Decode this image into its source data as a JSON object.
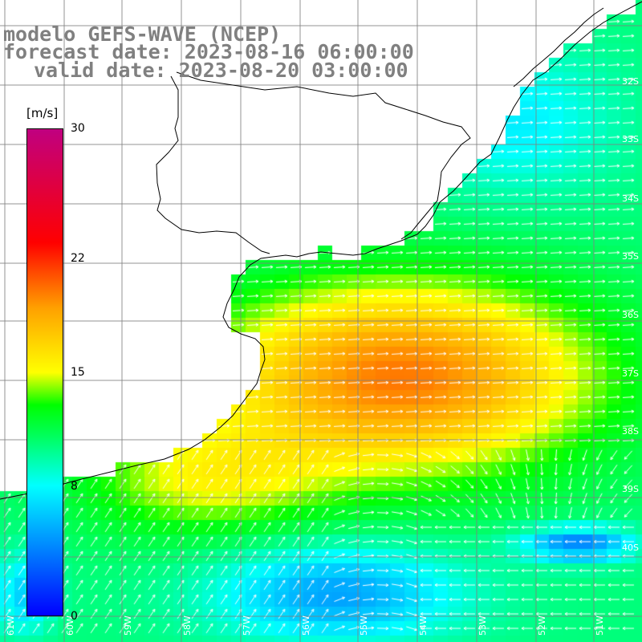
{
  "titles": {
    "line1": "modelo GEFS-WAVE (NCEP)",
    "line2": "forecast date: 2023-08-16 06:00:00",
    "line3": "valid date: 2023-08-20 03:00:00",
    "color": "#808080"
  },
  "colorbar": {
    "unit": "[m/s]",
    "ticks": [
      {
        "value": 30,
        "label": "30"
      },
      {
        "value": 22,
        "label": "22"
      },
      {
        "value": 15,
        "label": "15"
      },
      {
        "value": 8,
        "label": "8"
      },
      {
        "value": 0,
        "label": "0"
      }
    ],
    "min": 0,
    "max": 30,
    "stops": [
      {
        "value": 0,
        "color": "#0000ff"
      },
      {
        "value": 5,
        "color": "#00a0ff"
      },
      {
        "value": 8,
        "color": "#00ffff"
      },
      {
        "value": 11,
        "color": "#00ff60"
      },
      {
        "value": 13,
        "color": "#00ff00"
      },
      {
        "value": 15,
        "color": "#ffff00"
      },
      {
        "value": 19,
        "color": "#ffa000"
      },
      {
        "value": 23,
        "color": "#ff0000"
      },
      {
        "value": 30,
        "color": "#c00080"
      }
    ]
  },
  "map": {
    "latitude_labels": [
      "32S",
      "33S",
      "34S",
      "35S",
      "36S",
      "37S",
      "38S",
      "39S",
      "40S"
    ],
    "longitude_labels": [
      "61W",
      "60W",
      "59W",
      "58W",
      "57W",
      "56W",
      "55W",
      "54W",
      "53W",
      "52W",
      "51W"
    ],
    "coastline_color": "#000000",
    "gridline_color": "#808080",
    "land_color": "#ffffff",
    "wind_arrow_color": "#ffffff"
  }
}
